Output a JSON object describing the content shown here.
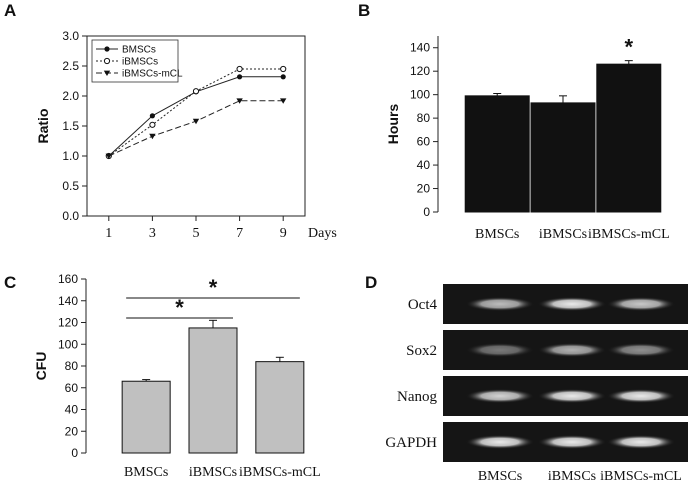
{
  "panels": {
    "a": {
      "letter": "A"
    },
    "b": {
      "letter": "B"
    },
    "c": {
      "letter": "C"
    },
    "d": {
      "letter": "D"
    }
  },
  "chart_data": [
    {
      "panel": "A",
      "type": "line",
      "ylabel": "Ratio",
      "xlabel": "Days",
      "x": [
        1,
        3,
        5,
        7,
        9
      ],
      "ylim": [
        0,
        3.0
      ],
      "yticks": [
        "0.0",
        "0.5",
        "1.0",
        "1.5",
        "2.0",
        "2.5",
        "3.0"
      ],
      "legend_position": "top-left",
      "series": [
        {
          "name": "BMSCs",
          "values": [
            1.0,
            1.67,
            2.07,
            2.32,
            2.32
          ],
          "marker": "filled-circle",
          "line": "solid"
        },
        {
          "name": "iBMSCs",
          "values": [
            1.0,
            1.52,
            2.08,
            2.45,
            2.45
          ],
          "marker": "open-circle",
          "line": "dotted"
        },
        {
          "name": "iBMSCs-mCL",
          "values": [
            1.0,
            1.33,
            1.58,
            1.92,
            1.92
          ],
          "marker": "filled-triangle-down",
          "line": "dashed"
        }
      ]
    },
    {
      "panel": "B",
      "type": "bar",
      "ylabel": "Hours",
      "categories": [
        "BMSCs",
        "iBMSCs",
        "iBMSCs-mCL"
      ],
      "values": [
        99,
        93,
        126
      ],
      "errors": [
        2,
        6,
        3
      ],
      "ylim": [
        0,
        150
      ],
      "yticks": [
        "0",
        "20",
        "40",
        "60",
        "80",
        "100",
        "120",
        "140"
      ],
      "bar_color": "#111111",
      "annotations": [
        {
          "category": "iBMSCs-mCL",
          "text": "*"
        }
      ]
    },
    {
      "panel": "C",
      "type": "bar",
      "ylabel": "CFU",
      "categories": [
        "BMSCs",
        "iBMSCs",
        "iBMSCs-mCL"
      ],
      "values": [
        66,
        115,
        84
      ],
      "errors": [
        1.5,
        7,
        4
      ],
      "ylim": [
        0,
        160
      ],
      "yticks": [
        "0",
        "20",
        "40",
        "60",
        "80",
        "100",
        "120",
        "140",
        "160"
      ],
      "bar_color": "#c0c0c0",
      "significance": [
        {
          "from": "BMSCs",
          "to": "iBMSCs",
          "text": "*"
        },
        {
          "from": "BMSCs",
          "to": "iBMSCs-mCL",
          "text": "*"
        }
      ]
    },
    {
      "panel": "D",
      "type": "gel",
      "rows": [
        "Oct4",
        "Sox2",
        "Nanog",
        "GAPDH"
      ],
      "columns": [
        "BMSCs",
        "iBMSCs",
        "iBMSCs-mCL"
      ],
      "band_intensity": [
        [
          0.75,
          0.95,
          0.8
        ],
        [
          0.45,
          0.7,
          0.55
        ],
        [
          0.85,
          0.95,
          0.95
        ],
        [
          0.95,
          0.95,
          0.95
        ]
      ]
    }
  ]
}
